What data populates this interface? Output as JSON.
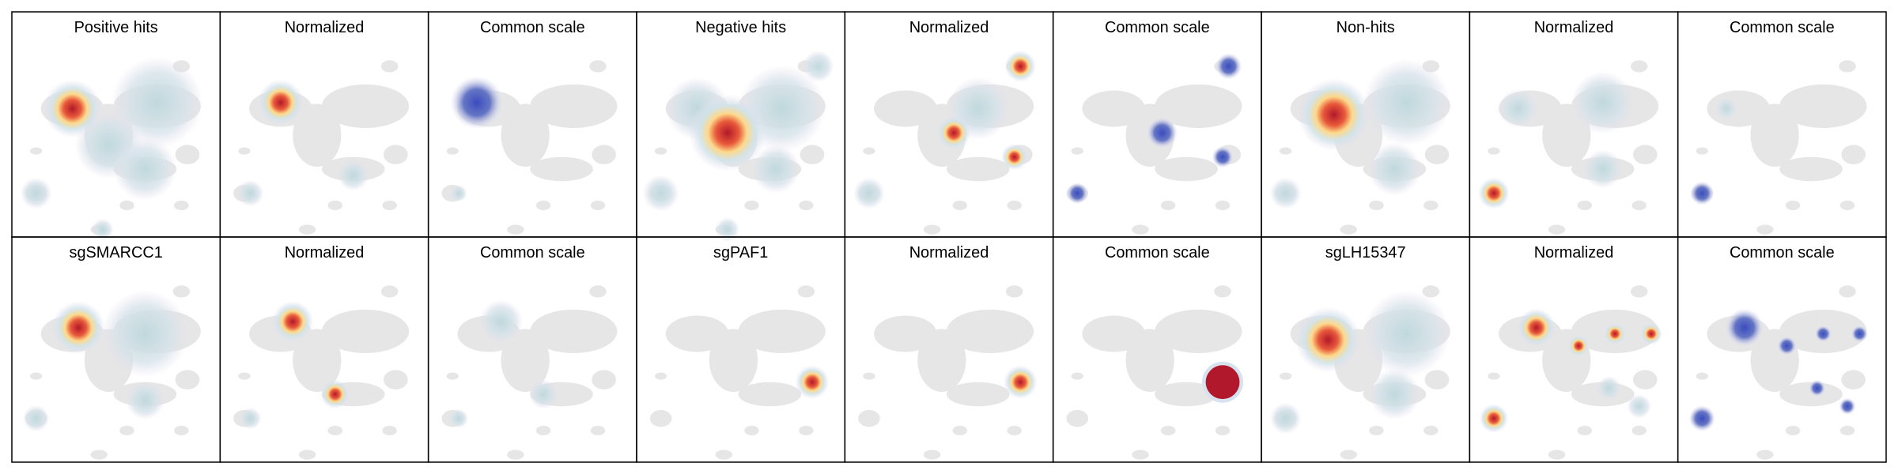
{
  "figure": {
    "rows": [
      [
        "Positive hits",
        "Normalized",
        "Common scale",
        "Negative hits",
        "Normalized",
        "Common scale",
        "Non-hits",
        "Normalized",
        "Common scale"
      ],
      [
        "sgSMARCC1",
        "Normalized",
        "Common scale",
        "sgPAF1",
        "Normalized",
        "Common scale",
        "sgLH15347",
        "Normalized",
        "Common scale"
      ]
    ]
  }
}
